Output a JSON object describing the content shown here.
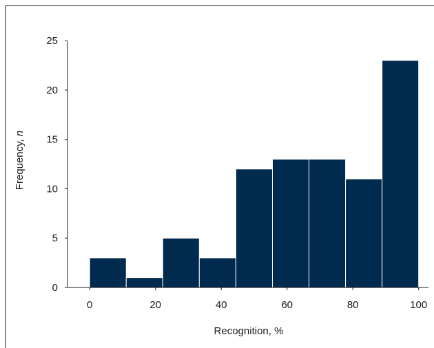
{
  "chart_data": {
    "type": "bar",
    "title": "",
    "xlabel": "Recognition, %",
    "ylabel_main": "Frequency, ",
    "ylabel_var": "n",
    "bin_edges": [
      0,
      11.11,
      22.22,
      33.33,
      44.44,
      55.56,
      66.67,
      77.78,
      88.89,
      100
    ],
    "values": [
      3,
      1,
      5,
      3,
      12,
      13,
      13,
      11,
      23
    ],
    "xlim": [
      -8,
      103
    ],
    "ylim": [
      0,
      25.5
    ],
    "xticks": [
      0,
      20,
      40,
      60,
      80,
      100
    ],
    "yticks": [
      0,
      5,
      10,
      15,
      20,
      25
    ],
    "bar_color": "#002a4e",
    "bar_edge_color": "#ffffff",
    "grid": false
  }
}
